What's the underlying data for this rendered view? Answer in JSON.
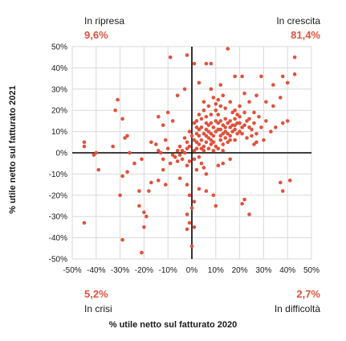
{
  "chart_data": {
    "type": "scatter",
    "title": "",
    "xlabel": "% utile netto sul fatturato 2020",
    "ylabel": "% utile netto sul fatturato 2021",
    "xlim": [
      -0.5,
      0.5
    ],
    "ylim": [
      -0.5,
      0.5
    ],
    "x_ticks": [
      "-50%",
      "-40%",
      "-30%",
      "-20%",
      "-10%",
      "0%",
      "10%",
      "20%",
      "30%",
      "40%",
      "50%"
    ],
    "y_ticks": [
      "50%",
      "40%",
      "30%",
      "20%",
      "10%",
      "0%",
      "-10%",
      "-20%",
      "-30%",
      "-40%",
      "-50%"
    ],
    "grid": true,
    "point_color": "#e0523c",
    "accent_color": "#e0523c",
    "quadrants": {
      "top_left": {
        "label": "In ripresa",
        "value": "9,6%"
      },
      "top_right": {
        "label": "In crescita",
        "value": "81,4%"
      },
      "bottom_left": {
        "label": "In crisi",
        "value": "5,2%"
      },
      "bottom_right": {
        "label": "In difficoltà",
        "value": "2,7%"
      }
    },
    "points": [
      [
        -0.45,
        0.05
      ],
      [
        -0.45,
        0.03
      ],
      [
        -0.4,
        0.0
      ],
      [
        -0.41,
        -0.01
      ],
      [
        -0.39,
        -0.08
      ],
      [
        -0.33,
        0.03
      ],
      [
        -0.32,
        0.2
      ],
      [
        -0.31,
        0.25
      ],
      [
        -0.29,
        0.16
      ],
      [
        -0.27,
        0.08
      ],
      [
        -0.28,
        0.07
      ],
      [
        -0.26,
        0.0
      ],
      [
        -0.27,
        -0.09
      ],
      [
        -0.29,
        -0.11
      ],
      [
        -0.3,
        -0.2
      ],
      [
        -0.29,
        -0.41
      ],
      [
        -0.45,
        -0.33
      ],
      [
        -0.21,
        -0.47
      ],
      [
        -0.2,
        -0.28
      ],
      [
        -0.22,
        -0.25
      ],
      [
        -0.19,
        -0.3
      ],
      [
        -0.2,
        -0.35
      ],
      [
        -0.22,
        -0.18
      ],
      [
        -0.18,
        -0.18
      ],
      [
        -0.17,
        -0.14
      ],
      [
        -0.14,
        -0.13
      ],
      [
        -0.11,
        -0.15
      ],
      [
        -0.24,
        -0.05
      ],
      [
        -0.21,
        -0.03
      ],
      [
        -0.12,
        -0.08
      ],
      [
        -0.05,
        -0.12
      ],
      [
        -0.02,
        -0.15
      ],
      [
        -0.01,
        -0.2
      ],
      [
        -0.02,
        -0.29
      ],
      [
        -0.01,
        -0.33
      ],
      [
        -0.02,
        -0.36
      ],
      [
        0.0,
        -0.26
      ],
      [
        0.01,
        -0.35
      ],
      [
        0.0,
        -0.44
      ],
      [
        0.01,
        -0.23
      ],
      [
        0.03,
        -0.17
      ],
      [
        0.06,
        -0.18
      ],
      [
        0.09,
        -0.2
      ],
      [
        0.1,
        -0.25
      ],
      [
        0.06,
        -0.1
      ],
      [
        0.05,
        -0.07
      ],
      [
        0.11,
        -0.06
      ],
      [
        0.13,
        -0.05
      ],
      [
        0.16,
        -0.03
      ],
      [
        0.22,
        -0.22
      ],
      [
        0.24,
        -0.29
      ],
      [
        0.21,
        -0.24
      ],
      [
        0.37,
        -0.14
      ],
      [
        0.38,
        -0.18
      ],
      [
        0.41,
        -0.13
      ],
      [
        -0.09,
        0.45
      ],
      [
        -0.02,
        0.46
      ],
      [
        0.01,
        0.42
      ],
      [
        0.06,
        0.42
      ],
      [
        0.08,
        0.42
      ],
      [
        0.15,
        0.49
      ],
      [
        0.12,
        0.32
      ],
      [
        0.18,
        0.36
      ],
      [
        0.21,
        0.36
      ],
      [
        0.29,
        0.36
      ],
      [
        0.34,
        0.32
      ],
      [
        0.38,
        0.36
      ],
      [
        0.43,
        0.45
      ],
      [
        0.43,
        0.37
      ],
      [
        0.4,
        0.33
      ],
      [
        0.34,
        0.22
      ],
      [
        0.31,
        0.24
      ],
      [
        0.37,
        0.26
      ],
      [
        0.38,
        0.14
      ],
      [
        0.4,
        0.15
      ],
      [
        0.27,
        0.27
      ],
      [
        0.24,
        0.24
      ],
      [
        0.26,
        0.19
      ],
      [
        0.22,
        0.28
      ],
      [
        0.08,
        0.3
      ],
      [
        0.03,
        0.33
      ],
      [
        -0.03,
        0.3
      ],
      [
        -0.06,
        0.27
      ],
      [
        -0.1,
        0.19
      ],
      [
        -0.14,
        0.17
      ],
      [
        -0.12,
        0.13
      ],
      [
        -0.08,
        0.15
      ],
      [
        -0.17,
        0.05
      ],
      [
        -0.15,
        0.04
      ],
      [
        -0.11,
        0.06
      ],
      [
        -0.06,
        0.01
      ],
      [
        -0.05,
        0.03
      ],
      [
        -0.08,
        -0.01
      ],
      [
        -0.1,
        0.02
      ],
      [
        -0.13,
        0.0
      ],
      [
        -0.14,
        0.01
      ],
      [
        -0.12,
        -0.03
      ],
      [
        -0.09,
        -0.05
      ],
      [
        -0.07,
        -0.02
      ],
      [
        -0.04,
        -0.03
      ],
      [
        -0.03,
        0.07
      ],
      [
        -0.02,
        0.05
      ],
      [
        0.02,
        0.09
      ],
      [
        0.02,
        0.15
      ],
      [
        0.04,
        0.12
      ],
      [
        0.05,
        0.2
      ],
      [
        0.06,
        0.17
      ],
      [
        0.07,
        0.1
      ],
      [
        0.08,
        0.14
      ],
      [
        0.09,
        0.05
      ],
      [
        0.1,
        0.1
      ],
      [
        0.11,
        0.18
      ],
      [
        0.12,
        0.06
      ],
      [
        0.13,
        0.13
      ],
      [
        0.14,
        0.16
      ],
      [
        0.15,
        0.09
      ],
      [
        0.16,
        0.12
      ],
      [
        0.17,
        0.19
      ],
      [
        0.18,
        0.06
      ],
      [
        0.19,
        0.14
      ],
      [
        0.2,
        0.17
      ],
      [
        0.21,
        0.09
      ],
      [
        0.22,
        0.13
      ],
      [
        0.23,
        0.07
      ],
      [
        0.24,
        0.16
      ],
      [
        0.25,
        0.11
      ],
      [
        0.26,
        0.14
      ],
      [
        0.27,
        0.09
      ],
      [
        0.28,
        0.17
      ],
      [
        0.29,
        0.12
      ],
      [
        0.31,
        0.15
      ],
      [
        0.33,
        0.1
      ],
      [
        0.35,
        0.12
      ],
      [
        0.3,
        0.06
      ],
      [
        0.27,
        0.05
      ],
      [
        0.02,
        0.02
      ],
      [
        0.03,
        0.04
      ],
      [
        0.04,
        0.06
      ],
      [
        0.05,
        0.03
      ],
      [
        0.06,
        0.05
      ],
      [
        0.07,
        0.07
      ],
      [
        0.08,
        0.04
      ],
      [
        0.09,
        0.08
      ],
      [
        0.1,
        0.03
      ],
      [
        0.11,
        0.11
      ],
      [
        0.12,
        0.08
      ],
      [
        0.13,
        0.04
      ],
      [
        0.14,
        0.07
      ],
      [
        0.15,
        0.05
      ],
      [
        0.16,
        0.08
      ],
      [
        0.17,
        0.1
      ],
      [
        0.18,
        0.11
      ],
      [
        0.19,
        0.09
      ],
      [
        0.2,
        0.1
      ],
      [
        0.21,
        0.12
      ],
      [
        0.01,
        0.01
      ],
      [
        0.02,
        0.05
      ],
      [
        0.03,
        0.08
      ],
      [
        0.04,
        0.02
      ],
      [
        0.05,
        0.09
      ],
      [
        0.06,
        0.11
      ],
      [
        0.07,
        0.13
      ],
      [
        0.08,
        0.09
      ],
      [
        0.09,
        0.12
      ],
      [
        0.1,
        0.15
      ],
      [
        0.11,
        0.14
      ],
      [
        0.12,
        0.11
      ],
      [
        0.13,
        0.09
      ],
      [
        0.14,
        0.12
      ],
      [
        0.15,
        0.14
      ],
      [
        0.16,
        0.15
      ],
      [
        0.17,
        0.13
      ],
      [
        0.18,
        0.16
      ],
      [
        0.19,
        0.18
      ],
      [
        0.2,
        0.14
      ],
      [
        0.05,
        0.01
      ],
      [
        0.07,
        0.02
      ],
      [
        0.09,
        0.01
      ],
      [
        0.11,
        0.02
      ],
      [
        0.13,
        0.01
      ],
      [
        0.03,
        0.11
      ],
      [
        0.04,
        0.16
      ],
      [
        0.06,
        0.14
      ],
      [
        0.08,
        0.18
      ],
      [
        0.1,
        0.2
      ],
      [
        0.12,
        0.22
      ],
      [
        0.14,
        0.21
      ],
      [
        0.16,
        0.24
      ],
      [
        0.18,
        0.2
      ],
      [
        0.2,
        0.22
      ],
      [
        0.22,
        0.19
      ],
      [
        0.23,
        0.15
      ],
      [
        0.24,
        0.12
      ],
      [
        0.25,
        0.08
      ],
      [
        0.26,
        0.04
      ],
      [
        -0.01,
        0.03
      ],
      [
        -0.02,
        0.02
      ],
      [
        -0.03,
        0.0
      ],
      [
        -0.04,
        0.01
      ],
      [
        -0.05,
        -0.01
      ],
      [
        -0.06,
        -0.04
      ],
      [
        -0.02,
        -0.06
      ],
      [
        -0.01,
        -0.04
      ],
      [
        0.01,
        -0.03
      ],
      [
        0.02,
        -0.08
      ],
      [
        0.03,
        -0.02
      ],
      [
        0.04,
        -0.05
      ],
      [
        0.01,
        0.06
      ],
      [
        0.0,
        0.08
      ],
      [
        -0.01,
        0.1
      ],
      [
        0.02,
        0.12
      ],
      [
        0.03,
        0.18
      ],
      [
        0.01,
        0.14
      ],
      [
        0.05,
        0.24
      ],
      [
        0.07,
        0.22
      ],
      [
        0.09,
        0.26
      ],
      [
        0.11,
        0.25
      ],
      [
        0.13,
        0.27
      ],
      [
        0.1,
        0.23
      ],
      [
        0.06,
        0.08
      ],
      [
        0.08,
        0.06
      ],
      [
        0.12,
        0.15
      ],
      [
        0.14,
        0.1
      ],
      [
        0.16,
        0.06
      ],
      [
        0.18,
        0.13
      ]
    ]
  }
}
